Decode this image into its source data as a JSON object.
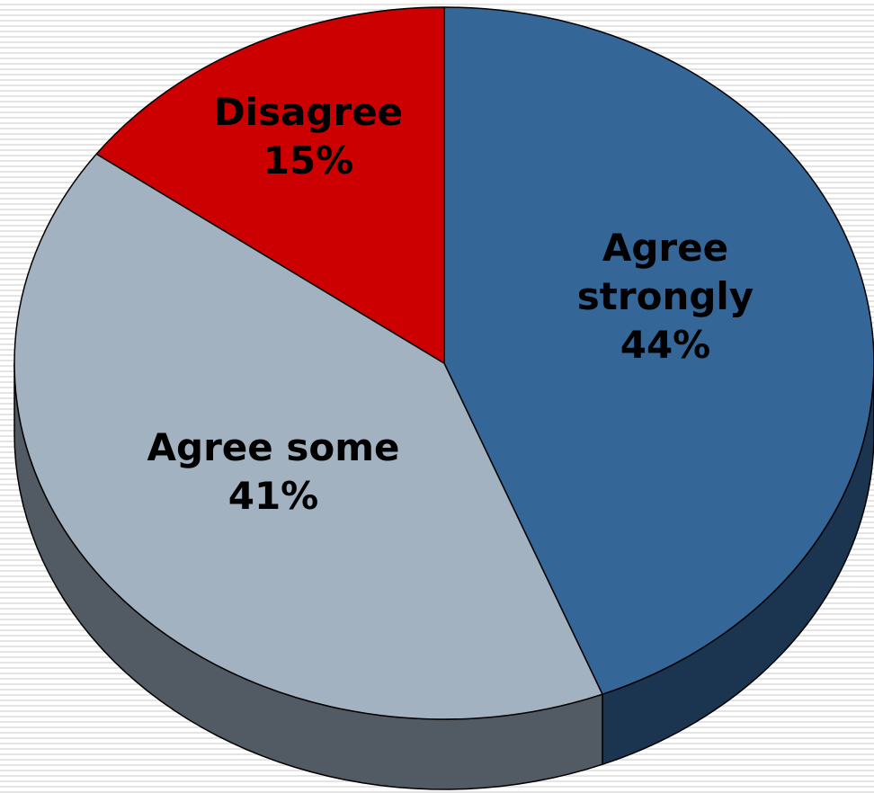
{
  "chart_data": {
    "type": "pie",
    "title": "",
    "slices": [
      {
        "label_lines": [
          "Agree",
          "strongly"
        ],
        "percent_label": "44%",
        "value": 44,
        "color": "#356698",
        "side_color": "#1b3550"
      },
      {
        "label_lines": [
          "Agree some"
        ],
        "percent_label": "41%",
        "value": 41,
        "color": "#a2b2c1",
        "side_color": "#525a63"
      },
      {
        "label_lines": [
          "Disagree"
        ],
        "percent_label": "15%",
        "value": 15,
        "color": "#cc0000",
        "side_color": "#7a0000"
      }
    ],
    "style": "3d",
    "start_angle": "12 o'clock",
    "direction": "clockwise",
    "legend": "none"
  }
}
